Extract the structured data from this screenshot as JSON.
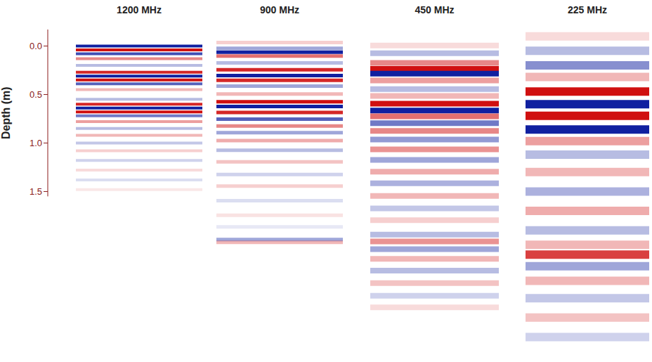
{
  "chart_data": [
    {
      "type": "radargram",
      "title": "1200 MHz",
      "ylabel": "Depth (m)",
      "ylim": [
        -0.17,
        1.55
      ],
      "yticks": [
        {
          "value": 0,
          "label": "0.0"
        },
        0.5,
        {
          "value": 1,
          "label": "1.0"
        },
        1.5
      ],
      "tick_labels": "y",
      "reflectors": {
        "depth": [
          0.0,
          0.04,
          0.08,
          0.13,
          0.2,
          0.27,
          0.31,
          0.35,
          0.39,
          0.45,
          0.55,
          0.6,
          0.64,
          0.68,
          0.72,
          0.78,
          0.85,
          0.92,
          1.0,
          1.08,
          1.18,
          1.28,
          1.38,
          1.48
        ],
        "amplitude": [
          -1,
          1,
          -0.8,
          0.5,
          -0.3,
          0.9,
          -1,
          1,
          -0.7,
          0.3,
          -0.3,
          0.9,
          -1,
          1,
          -0.6,
          0.4,
          -0.3,
          0.3,
          -0.25,
          0.2,
          -0.2,
          0.15,
          -0.15,
          0.1
        ]
      }
    },
    {
      "type": "radargram",
      "title": "900 MHz",
      "ylim": [
        -0.07,
        2.07
      ],
      "tick_labels": false,
      "reflectors": {
        "depth": [
          -0.03,
          0.03,
          0.07,
          0.11,
          0.18,
          0.25,
          0.31,
          0.36,
          0.42,
          0.5,
          0.58,
          0.63,
          0.69,
          0.76,
          0.83,
          0.9,
          0.98,
          1.08,
          1.2,
          1.33,
          1.45,
          1.6,
          1.75,
          1.87,
          2.0,
          2.03
        ],
        "amplitude": [
          0.2,
          -0.4,
          -1,
          0.6,
          -0.3,
          0.9,
          -1,
          0.9,
          -0.4,
          0.3,
          1,
          -1,
          0.9,
          -0.7,
          0.5,
          -0.4,
          0.35,
          -0.3,
          0.25,
          -0.2,
          0.2,
          -0.15,
          0.12,
          -0.1,
          -0.4,
          0.3
        ]
      }
    },
    {
      "type": "radargram",
      "title": "450 MHz",
      "ylim": [
        -0.02,
        2.8
      ],
      "tick_labels": false,
      "reflectors": {
        "depth": [
          0.0,
          0.08,
          0.18,
          0.24,
          0.29,
          0.36,
          0.45,
          0.52,
          0.6,
          0.67,
          0.73,
          0.8,
          0.88,
          0.97,
          1.07,
          1.18,
          1.3,
          1.42,
          1.55,
          1.68,
          1.8,
          1.95,
          2.02,
          2.1,
          2.2,
          2.32,
          2.45,
          2.58,
          2.7
        ],
        "amplitude": [
          0.15,
          -0.3,
          0.5,
          1,
          -1,
          0.4,
          -0.3,
          0.3,
          1,
          -1,
          0.6,
          -0.6,
          0.5,
          -0.45,
          0.45,
          -0.4,
          0.35,
          -0.35,
          0.3,
          -0.25,
          0.2,
          -0.3,
          0.45,
          -0.4,
          0.3,
          -0.3,
          0.25,
          -0.2,
          0.15
        ]
      }
    },
    {
      "type": "radargram",
      "title": "225 MHz",
      "ylim": [
        -0.17,
        3.17
      ],
      "tick_labels": false,
      "reflectors": {
        "depth": [
          -0.1,
          0.05,
          0.2,
          0.32,
          0.47,
          0.6,
          0.72,
          0.86,
          0.98,
          1.12,
          1.3,
          1.5,
          1.7,
          1.9,
          2.05,
          2.15,
          2.27,
          2.42,
          2.6,
          2.8,
          3.0
        ],
        "amplitude": [
          0.15,
          -0.3,
          -0.5,
          0.3,
          1,
          -1,
          1,
          -1,
          0.4,
          -0.3,
          0.3,
          -0.35,
          0.35,
          -0.3,
          0.3,
          0.8,
          -0.4,
          0.3,
          -0.25,
          0.25,
          -0.2
        ]
      }
    }
  ]
}
